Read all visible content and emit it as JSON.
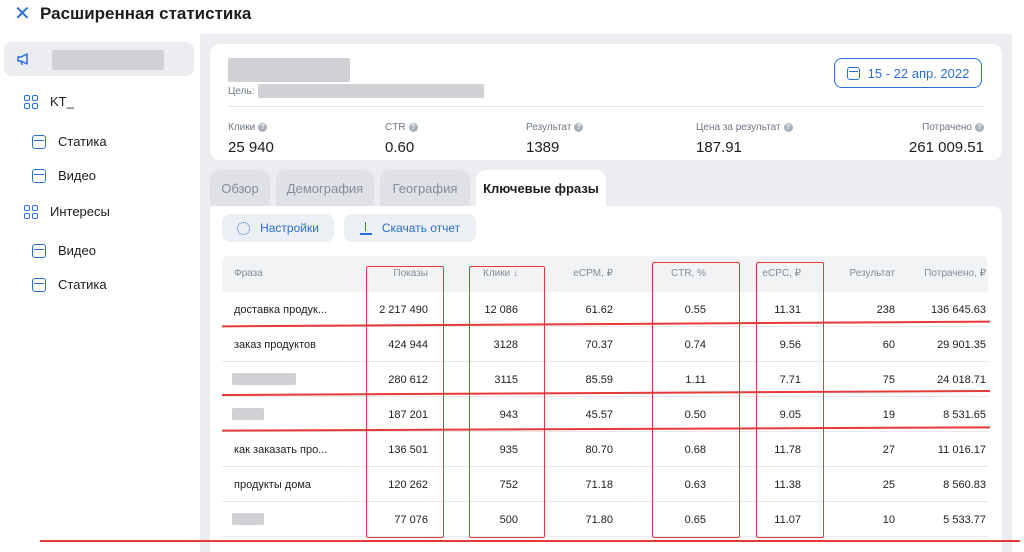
{
  "header": {
    "title": "Расширенная статистика"
  },
  "sidebar": {
    "items": [
      {
        "label": "KT_",
        "icon": "grid-icon",
        "level": 0
      },
      {
        "label": "Статика",
        "icon": "document-icon",
        "level": 1
      },
      {
        "label": "Видео",
        "icon": "document-icon",
        "level": 1
      },
      {
        "label": "Интересы",
        "icon": "grid-icon",
        "level": 0
      },
      {
        "label": "Видео",
        "icon": "document-icon",
        "level": 1
      },
      {
        "label": "Статика",
        "icon": "document-icon",
        "level": 1
      }
    ]
  },
  "summary": {
    "goal_label": "Цель:",
    "date_range": "15 - 22 апр. 2022",
    "metrics": [
      {
        "label": "Клики",
        "value": "25 940"
      },
      {
        "label": "CTR",
        "value": "0.60"
      },
      {
        "label": "Результат",
        "value": "1389"
      },
      {
        "label": "Цена за результат",
        "value": "187.91"
      },
      {
        "label": "Потрачено",
        "value": "261 009.51"
      }
    ]
  },
  "tabs": [
    {
      "label": "Обзор",
      "active": false
    },
    {
      "label": "Демография",
      "active": false
    },
    {
      "label": "География",
      "active": false
    },
    {
      "label": "Ключевые фразы",
      "active": true
    }
  ],
  "toolbar": {
    "settings_label": "Настройки",
    "download_label": "Скачать отчет"
  },
  "table": {
    "columns": [
      "Фраза",
      "Показы",
      "Клики ↓",
      "eCPM, ₽",
      "CTR, %",
      "eCPC, ₽",
      "Результат",
      "Потрачено, ₽"
    ],
    "rows": [
      {
        "phrase": "доставка продук...",
        "shows": "2 217 490",
        "clicks": "12 086",
        "ecpm": "61.62",
        "ctr": "0.55",
        "ecpc": "11.31",
        "result": "238",
        "spent": "136 645.63"
      },
      {
        "phrase": "заказ продуктов",
        "shows": "424 944",
        "clicks": "3128",
        "ecpm": "70.37",
        "ctr": "0.74",
        "ecpc": "9.56",
        "result": "60",
        "spent": "29 901.35"
      },
      {
        "phrase": "",
        "shows": "280 612",
        "clicks": "3115",
        "ecpm": "85.59",
        "ctr": "1.11",
        "ecpc": "7.71",
        "result": "75",
        "spent": "24 018.71"
      },
      {
        "phrase": "",
        "shows": "187 201",
        "clicks": "943",
        "ecpm": "45.57",
        "ctr": "0.50",
        "ecpc": "9.05",
        "result": "19",
        "spent": "8 531.65"
      },
      {
        "phrase": "как заказать про...",
        "shows": "136 501",
        "clicks": "935",
        "ecpm": "80.70",
        "ctr": "0.68",
        "ecpc": "11.78",
        "result": "27",
        "spent": "11 016.17"
      },
      {
        "phrase": "продукты дома",
        "shows": "120 262",
        "clicks": "752",
        "ecpm": "71.18",
        "ctr": "0.63",
        "ecpc": "11.38",
        "result": "25",
        "spent": "8 560.83"
      },
      {
        "phrase": "",
        "shows": "77 076",
        "clicks": "500",
        "ecpm": "71.80",
        "ctr": "0.65",
        "ecpc": "11.07",
        "result": "10",
        "spent": "5 533.77"
      }
    ]
  },
  "colors": {
    "accent": "#2a6fd6",
    "annotation": "#e63a3a"
  }
}
